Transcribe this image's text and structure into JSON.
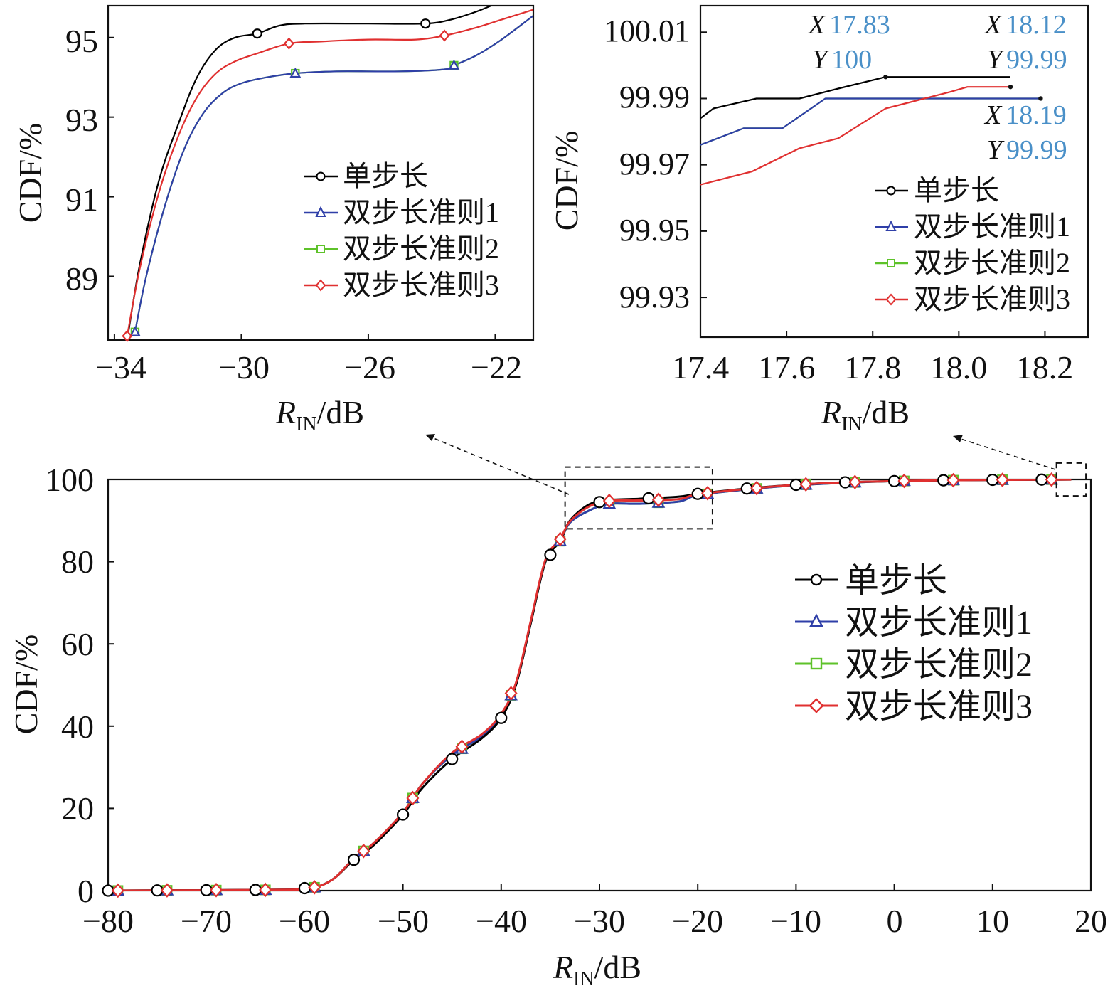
{
  "colors": {
    "single": "#000000",
    "rule1": "#2f3fa8",
    "rule2": "#5ec22a",
    "rule3": "#e03030",
    "annotation_value": "#4a90c8"
  },
  "legend": [
    "单步长",
    "双步长准则1",
    "双步长准则2",
    "双步长准则3"
  ],
  "chart_data": [
    {
      "id": "main",
      "type": "line",
      "xlabel_main": "R",
      "xlabel_sub": "IN",
      "xlabel_unit": "/dB",
      "ylabel": "CDF/%",
      "xlim": [
        -80,
        20
      ],
      "ylim": [
        0,
        100
      ],
      "xticks": [
        "−80",
        "−70",
        "−60",
        "−50",
        "−40",
        "−30",
        "−20",
        "−10",
        "0",
        "10",
        "20"
      ],
      "xtick_values": [
        -80,
        -70,
        -60,
        -50,
        -40,
        -30,
        -20,
        -10,
        0,
        10,
        20
      ],
      "yticks": [
        "0",
        "20",
        "40",
        "60",
        "80",
        "100"
      ],
      "ytick_values": [
        0,
        20,
        40,
        60,
        80,
        100
      ],
      "legend_position": "right",
      "series": [
        {
          "name": "单步长",
          "marker": "circle",
          "markers_x": [
            -80,
            -75,
            -70,
            -65,
            -60,
            -55,
            -50,
            -45,
            -40,
            -35,
            -30,
            -25,
            -20,
            -15,
            -10,
            -5,
            0,
            5,
            10,
            15
          ],
          "x": [
            -80,
            -62,
            -59,
            -57,
            -55,
            -53,
            -50,
            -48,
            -45,
            -42,
            -40,
            -38.5,
            -37,
            -35.5,
            -34,
            -33,
            -31,
            -29,
            -26,
            -22,
            -20,
            -15,
            -10,
            -5,
            0,
            5,
            10,
            18
          ],
          "y": [
            0,
            0.2,
            0.8,
            3,
            7.5,
            11,
            18.5,
            25,
            32,
            37,
            42,
            50,
            65,
            80,
            85,
            90,
            94,
            95,
            95.3,
            95.8,
            96.5,
            97.8,
            98.7,
            99.3,
            99.6,
            99.8,
            99.9,
            100
          ]
        },
        {
          "name": "双步长准则1",
          "marker": "triangle",
          "markers_x": [
            -79,
            -74,
            -69,
            -64,
            -59,
            -54,
            -49,
            -44,
            -39,
            -34,
            -29,
            -24,
            -19,
            -14,
            -9,
            -4,
            1,
            6,
            11,
            16
          ],
          "x": [
            -80,
            -62,
            -59,
            -57,
            -55,
            -53,
            -50,
            -48,
            -45,
            -42,
            -40,
            -38.5,
            -37,
            -35.5,
            -34,
            -33,
            -31,
            -29,
            -26,
            -22,
            -20,
            -15,
            -10,
            -5,
            0,
            5,
            10,
            18
          ],
          "y": [
            0,
            0.2,
            0.8,
            3,
            7.8,
            11.5,
            19,
            26,
            33,
            37.5,
            42.5,
            50,
            65,
            80,
            85,
            89.5,
            92.5,
            94.1,
            94.1,
            94.6,
            96.2,
            97.6,
            98.6,
            99.2,
            99.6,
            99.8,
            99.9,
            99.99
          ]
        },
        {
          "name": "双步长准则2",
          "marker": "square",
          "markers_x": [
            -79,
            -74,
            -69,
            -64,
            -59,
            -54,
            -49,
            -44,
            -39,
            -34,
            -29,
            -24,
            -19,
            -14,
            -9,
            -4,
            1,
            6,
            11,
            16
          ],
          "x": [
            -80,
            -62,
            -59,
            -57,
            -55,
            -53,
            -50,
            -48,
            -45,
            -42,
            -40,
            -38.5,
            -37,
            -35.5,
            -34,
            -33,
            -31,
            -29,
            -26,
            -22,
            -20,
            -15,
            -10,
            -5,
            0,
            5,
            10,
            18
          ],
          "y": [
            0,
            0.2,
            0.8,
            3,
            7.8,
            11.5,
            19,
            26,
            33,
            37.5,
            42.5,
            50,
            65,
            80,
            85,
            89.5,
            92.5,
            94.1,
            94.1,
            94.6,
            96.2,
            97.6,
            98.6,
            99.2,
            99.6,
            99.8,
            99.9,
            99.99
          ]
        },
        {
          "name": "双步长准则3",
          "marker": "diamond",
          "markers_x": [
            -79,
            -74,
            -69,
            -64,
            -59,
            -54,
            -49,
            -44,
            -39,
            -34,
            -29,
            -24,
            -19,
            -14,
            -9,
            -4,
            1,
            6,
            11,
            16
          ],
          "x": [
            -80,
            -62,
            -59,
            -57,
            -55,
            -53,
            -50,
            -48,
            -45,
            -42,
            -40,
            -38.5,
            -37,
            -35.5,
            -34,
            -33,
            -31,
            -29,
            -26,
            -22,
            -20,
            -15,
            -10,
            -5,
            0,
            5,
            10,
            18
          ],
          "y": [
            0,
            0.2,
            0.8,
            3,
            7.8,
            11.5,
            19,
            26,
            33.5,
            38,
            43,
            50.5,
            65.5,
            80.5,
            85.5,
            89.8,
            93.5,
            94.8,
            94.9,
            95.2,
            96.4,
            97.7,
            98.7,
            99.3,
            99.6,
            99.8,
            99.9,
            99.99
          ]
        }
      ],
      "zoom_regions": [
        {
          "x": [
            -33.5,
            -18.5
          ],
          "y": [
            88,
            103
          ]
        },
        {
          "x": [
            16.5,
            19.5
          ],
          "y": [
            96,
            104
          ]
        }
      ]
    },
    {
      "id": "inset_left",
      "type": "line",
      "xlabel_main": "R",
      "xlabel_sub": "IN",
      "xlabel_unit": "/dB",
      "ylabel": "CDF/%",
      "xlim": [
        -34.2,
        -20.8
      ],
      "ylim": [
        87.4,
        95.8
      ],
      "xticks": [
        "−34",
        "−30",
        "−26",
        "−22"
      ],
      "xtick_values": [
        -34,
        -30,
        -26,
        -22
      ],
      "yticks": [
        "89",
        "91",
        "93",
        "95"
      ],
      "ytick_values": [
        89,
        91,
        93,
        95
      ],
      "legend_position": "center-right",
      "series": [
        {
          "name": "单步长",
          "marker": "circle",
          "markers_x": [
            -29.5,
            -24.2
          ],
          "x": [
            -33.6,
            -33.2,
            -32.6,
            -32,
            -31.4,
            -30.8,
            -30.2,
            -29.5,
            -28.8,
            -28,
            -26,
            -24.2,
            -23.4,
            -22.6,
            -21.8,
            -21.2
          ],
          "y": [
            87.4,
            89.3,
            91.4,
            92.8,
            94.0,
            94.7,
            95.0,
            95.1,
            95.3,
            95.35,
            95.35,
            95.35,
            95.45,
            95.65,
            95.9,
            96.0
          ]
        },
        {
          "name": "双步长准则1",
          "marker": "triangle",
          "markers_x": [
            -33.35,
            -28.3,
            -23.3
          ],
          "x": [
            -33.35,
            -33.0,
            -32.4,
            -31.8,
            -31.2,
            -30.6,
            -30,
            -29.2,
            -28.3,
            -27,
            -25,
            -23.6,
            -23.3,
            -22.6,
            -21.8,
            -20.8
          ],
          "y": [
            87.6,
            89.0,
            90.8,
            92.2,
            93.1,
            93.6,
            93.85,
            94.0,
            94.1,
            94.15,
            94.15,
            94.2,
            94.3,
            94.55,
            94.95,
            95.55
          ]
        },
        {
          "name": "双步长准则2",
          "marker": "square",
          "markers_x": [
            -33.35,
            -28.3,
            -23.3
          ],
          "x": [
            -33.35,
            -33.0,
            -32.4,
            -31.8,
            -31.2,
            -30.6,
            -30,
            -29.2,
            -28.3,
            -27,
            -25,
            -23.6,
            -23.3,
            -22.6,
            -21.8,
            -20.8
          ],
          "y": [
            87.6,
            89.0,
            90.8,
            92.2,
            93.1,
            93.6,
            93.85,
            94.0,
            94.1,
            94.15,
            94.15,
            94.2,
            94.3,
            94.55,
            94.95,
            95.55
          ]
        },
        {
          "name": "双步长准则3",
          "marker": "diamond",
          "markers_x": [
            -33.6,
            -28.5,
            -23.6
          ],
          "x": [
            -33.6,
            -33.2,
            -32.6,
            -32,
            -31.4,
            -30.8,
            -30.2,
            -29.5,
            -28.5,
            -27.5,
            -26,
            -24.5,
            -23.6,
            -22.6,
            -21.8,
            -20.8
          ],
          "y": [
            87.5,
            89.2,
            91.1,
            92.5,
            93.5,
            94.1,
            94.4,
            94.6,
            94.85,
            94.9,
            94.95,
            94.95,
            95.05,
            95.25,
            95.45,
            95.7
          ]
        }
      ]
    },
    {
      "id": "inset_right",
      "type": "line",
      "xlabel_main": "R",
      "xlabel_sub": "IN",
      "xlabel_unit": "/dB",
      "ylabel": "CDF/%",
      "xlim": [
        17.4,
        18.3
      ],
      "ylim": [
        99.918,
        100.018
      ],
      "xticks": [
        "17.4",
        "17.6",
        "17.8",
        "18.0",
        "18.2"
      ],
      "xtick_values": [
        17.4,
        17.6,
        17.8,
        18.0,
        18.2
      ],
      "yticks": [
        "99.93",
        "99.95",
        "99.97",
        "99.99",
        "100.01"
      ],
      "ytick_values": [
        99.93,
        99.95,
        99.97,
        99.99,
        100.01
      ],
      "legend_position": "bottom-right",
      "series": [
        {
          "name": "单步长",
          "x": [
            17.4,
            17.43,
            17.53,
            17.63,
            17.72,
            17.83,
            18.12
          ],
          "y": [
            99.984,
            99.987,
            99.99,
            99.99,
            99.993,
            99.9965,
            99.9965
          ]
        },
        {
          "name": "双步长准则1",
          "x": [
            17.4,
            17.5,
            17.59,
            17.69,
            17.81,
            18.19
          ],
          "y": [
            99.976,
            99.981,
            99.981,
            99.99,
            99.99,
            99.99
          ]
        },
        {
          "name": "双步长准则2",
          "x": [
            17.4,
            17.5,
            17.59,
            17.69,
            17.81,
            18.19
          ],
          "y": [
            99.976,
            99.981,
            99.981,
            99.99,
            99.99,
            99.99
          ]
        },
        {
          "name": "双步长准则3",
          "x": [
            17.4,
            17.52,
            17.63,
            17.72,
            17.83,
            17.98,
            18.02,
            18.12
          ],
          "y": [
            99.964,
            99.968,
            99.975,
            99.978,
            99.987,
            99.992,
            99.9935,
            99.9935
          ]
        }
      ],
      "endpoints_x": [
        17.83,
        18.12,
        18.19
      ],
      "endpoints_y": [
        99.9965,
        99.9935,
        99.99
      ],
      "annotations": [
        {
          "x_prefix": "X",
          "x_value": "17.83",
          "y_prefix": "Y",
          "y_value": "100"
        },
        {
          "x_prefix": "X",
          "x_value": "18.12",
          "y_prefix": "Y",
          "y_value": "99.99"
        },
        {
          "x_prefix": "X",
          "x_value": "18.19",
          "y_prefix": "Y",
          "y_value": "99.99"
        }
      ]
    }
  ]
}
